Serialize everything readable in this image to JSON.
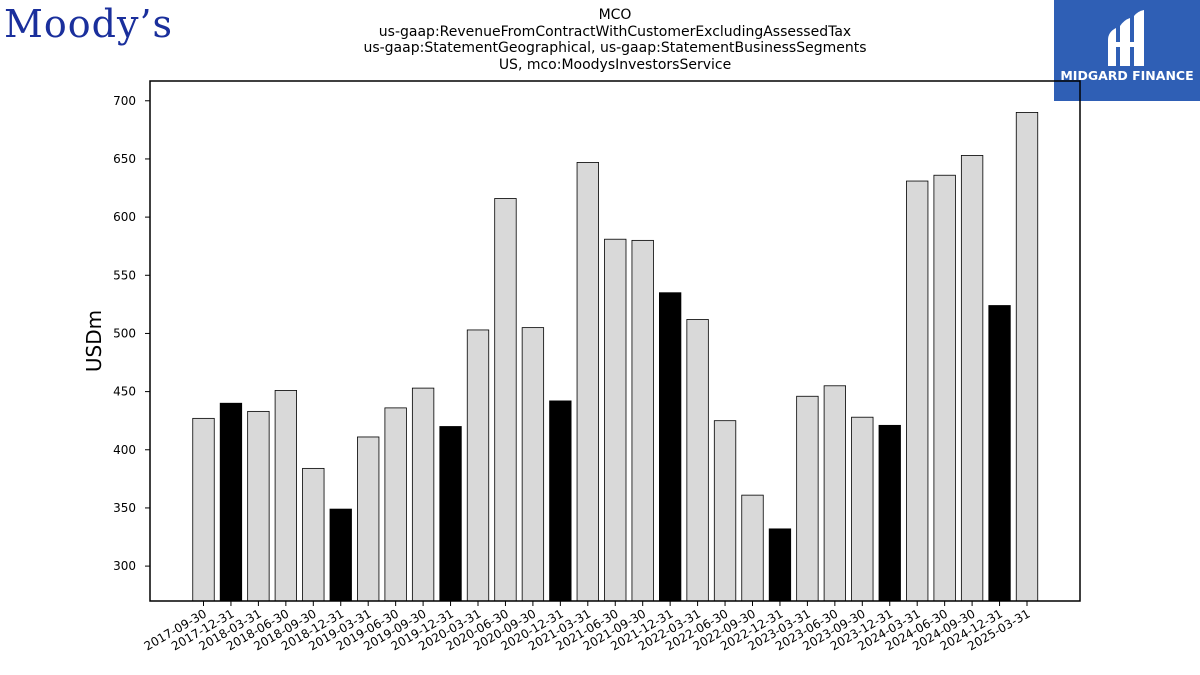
{
  "header": {
    "left_logo": "Moody’s",
    "right_logo_text": "MIDGARD FINANCE",
    "right_logo_icon": "midgard-logo-icon"
  },
  "chart_data": {
    "type": "bar",
    "title_lines": [
      "MCO",
      "us-gaap:RevenueFromContractWithCustomerExcludingAssessedTax",
      "us-gaap:StatementGeographical, us-gaap:StatementBusinessSegments",
      "US, mco:MoodysInvestorsService"
    ],
    "xlabel": "",
    "ylabel": "USDm",
    "ylim": [
      270,
      717
    ],
    "yticks": [
      300,
      350,
      400,
      450,
      500,
      550,
      600,
      650,
      700
    ],
    "grid": false,
    "categories": [
      "2017-09-30",
      "2017-12-31",
      "2018-03-31",
      "2018-06-30",
      "2018-09-30",
      "2018-12-31",
      "2019-03-31",
      "2019-06-30",
      "2019-09-30",
      "2019-12-31",
      "2020-03-31",
      "2020-06-30",
      "2020-09-30",
      "2020-12-31",
      "2021-03-31",
      "2021-06-30",
      "2021-09-30",
      "2021-12-31",
      "2022-03-31",
      "2022-06-30",
      "2022-09-30",
      "2022-12-31",
      "2023-03-31",
      "2023-06-30",
      "2023-09-30",
      "2023-12-31",
      "2024-03-31",
      "2024-06-30",
      "2024-09-30",
      "2024-12-31",
      "2025-03-31"
    ],
    "values": [
      427,
      440,
      433,
      451,
      384,
      349,
      411,
      436,
      453,
      420,
      503,
      616,
      505,
      442,
      647,
      581,
      580,
      535,
      512,
      425,
      361,
      332,
      446,
      455,
      428,
      421,
      631,
      636,
      653,
      524,
      690
    ],
    "colors": {
      "quarter": "#d9d9d9",
      "year_end": "#000000",
      "edge": "#000000"
    }
  }
}
